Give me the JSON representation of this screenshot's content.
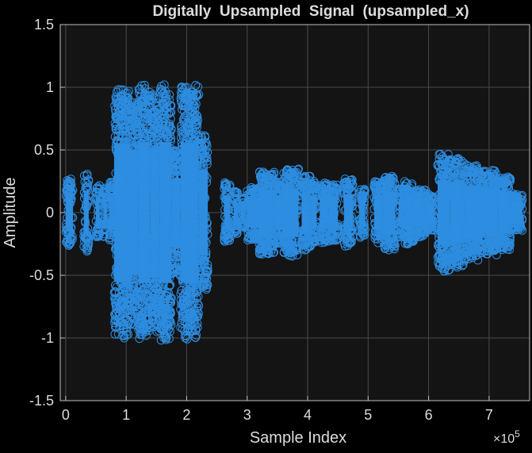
{
  "chart_data": {
    "type": "scatter",
    "title": "Digitally  Upsampled  Signal  (upsampled_x)",
    "xlabel": "Sample Index",
    "ylabel": "Amplitude",
    "x_exponent_label": "×10",
    "x_exponent_power": "5",
    "xlim": [
      -1.0,
      7.6
    ],
    "ylim": [
      -1.5,
      1.5
    ],
    "x_scale_factor": 100000,
    "x_ticks": [
      0,
      1,
      2,
      3,
      4,
      5,
      6,
      7
    ],
    "x_tick_labels": [
      "0",
      "1",
      "2",
      "3",
      "4",
      "5",
      "6",
      "7"
    ],
    "y_ticks": [
      -1.5,
      -1,
      -0.5,
      0,
      0.5,
      1,
      1.5
    ],
    "y_tick_labels": [
      "-1.5",
      "-1",
      "-0.5",
      "0",
      "0.5",
      "1",
      "1.5"
    ],
    "grid": true,
    "marker": "circle-open",
    "segments_note_x_units": "x in units of 1e5 samples; amp is max absolute amplitude of burst",
    "series": [
      {
        "bursts": [
          {
            "x0": 0.0,
            "x1": 0.12,
            "amp": 0.27
          },
          {
            "x0": 0.3,
            "x1": 0.38,
            "amp": 0.32
          },
          {
            "x0": 0.5,
            "x1": 0.56,
            "amp": 0.22
          },
          {
            "x0": 0.62,
            "x1": 0.68,
            "amp": 0.2
          },
          {
            "x0": 0.72,
            "x1": 0.8,
            "amp": 0.25
          },
          {
            "x0": 0.8,
            "x1": 1.05,
            "amp": 1.0
          },
          {
            "x0": 1.05,
            "x1": 1.2,
            "amp": 0.9
          },
          {
            "x0": 1.2,
            "x1": 1.4,
            "amp": 1.02
          },
          {
            "x0": 1.4,
            "x1": 1.55,
            "amp": 0.95
          },
          {
            "x0": 1.55,
            "x1": 1.75,
            "amp": 1.02
          },
          {
            "x0": 1.75,
            "x1": 1.9,
            "amp": 0.5
          },
          {
            "x0": 1.9,
            "x1": 2.2,
            "amp": 1.02
          },
          {
            "x0": 2.2,
            "x1": 2.35,
            "amp": 0.62
          },
          {
            "x0": 2.62,
            "x1": 2.72,
            "amp": 0.25
          },
          {
            "x0": 2.78,
            "x1": 2.84,
            "amp": 0.18
          },
          {
            "x0": 2.9,
            "x1": 2.96,
            "amp": 0.12
          },
          {
            "x0": 3.0,
            "x1": 3.2,
            "amp": 0.22
          },
          {
            "x0": 3.2,
            "x1": 3.45,
            "amp": 0.34
          },
          {
            "x0": 3.45,
            "x1": 3.6,
            "amp": 0.25
          },
          {
            "x0": 3.6,
            "x1": 3.85,
            "amp": 0.35
          },
          {
            "x0": 3.9,
            "x1": 4.05,
            "amp": 0.3
          },
          {
            "x0": 4.05,
            "x1": 4.15,
            "amp": 0.25
          },
          {
            "x0": 4.2,
            "x1": 4.35,
            "amp": 0.24
          },
          {
            "x0": 4.35,
            "x1": 4.5,
            "amp": 0.23
          },
          {
            "x0": 4.6,
            "x1": 4.75,
            "amp": 0.27
          },
          {
            "x0": 4.85,
            "x1": 4.95,
            "amp": 0.2
          },
          {
            "x0": 5.1,
            "x1": 5.25,
            "amp": 0.25
          },
          {
            "x0": 5.25,
            "x1": 5.45,
            "amp": 0.3
          },
          {
            "x0": 5.5,
            "x1": 5.6,
            "amp": 0.2
          },
          {
            "x0": 5.6,
            "x1": 5.75,
            "amp": 0.25
          },
          {
            "x0": 5.75,
            "x1": 5.95,
            "amp": 0.2
          },
          {
            "x0": 5.95,
            "x1": 6.1,
            "amp": 0.15
          },
          {
            "x0": 6.15,
            "x1": 6.35,
            "amp": 0.47
          },
          {
            "x0": 6.35,
            "x1": 6.6,
            "amp": 0.44
          },
          {
            "x0": 6.6,
            "x1": 6.85,
            "amp": 0.38
          },
          {
            "x0": 6.85,
            "x1": 7.15,
            "amp": 0.34
          },
          {
            "x0": 7.15,
            "x1": 7.35,
            "amp": 0.3
          },
          {
            "x0": 7.35,
            "x1": 7.55,
            "amp": 0.15
          }
        ]
      }
    ]
  },
  "colors": {
    "figure_background": "#000000",
    "axes_background": "#141414",
    "grid": "#4a4a4a",
    "axis_line": "#bfbfbf",
    "text": "#dcdcdc",
    "series": "#2d8de0"
  }
}
